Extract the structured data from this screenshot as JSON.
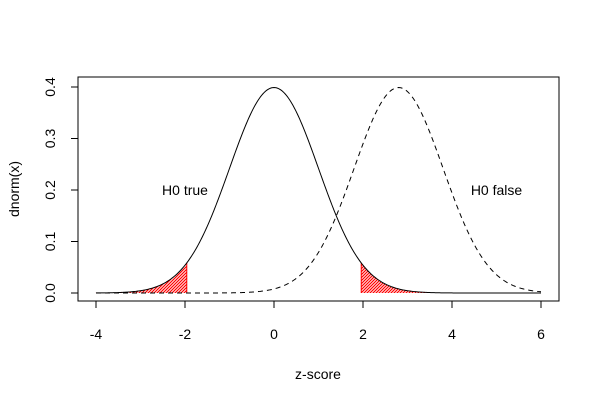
{
  "chart_data": {
    "type": "line",
    "title": "",
    "xlabel": "z-score",
    "ylabel": "dnorm(x)",
    "xlim": [
      -4,
      6
    ],
    "ylim": [
      0,
      0.4
    ],
    "x_ticks": [
      -4,
      -2,
      0,
      2,
      4,
      6
    ],
    "y_ticks": [
      0.0,
      0.1,
      0.2,
      0.3,
      0.4
    ],
    "x_tick_labels": [
      "-4",
      "-2",
      "0",
      "2",
      "4",
      "6"
    ],
    "y_tick_labels": [
      "0.0",
      "0.1",
      "0.2",
      "0.3",
      "0.4"
    ],
    "grid": false,
    "series": [
      {
        "style": "solid",
        "color": "#000000",
        "mean": 0,
        "sd": 1,
        "x_range": [
          -4,
          6
        ]
      },
      {
        "style": "dashed",
        "color": "#000000",
        "mean": 2.8,
        "sd": 1,
        "x_range": [
          -4,
          6
        ]
      }
    ],
    "shaded_regions": [
      {
        "curve": 0,
        "x_range": [
          -4,
          -1.96
        ],
        "color": "#ff0000"
      },
      {
        "curve": 0,
        "x_range": [
          1.96,
          6
        ],
        "color": "#ff0000"
      }
    ],
    "annotations": [
      {
        "text": "H0 true",
        "x": -2,
        "y": 0.2
      },
      {
        "text": "H0 false",
        "x": 5,
        "y": 0.2
      }
    ]
  }
}
